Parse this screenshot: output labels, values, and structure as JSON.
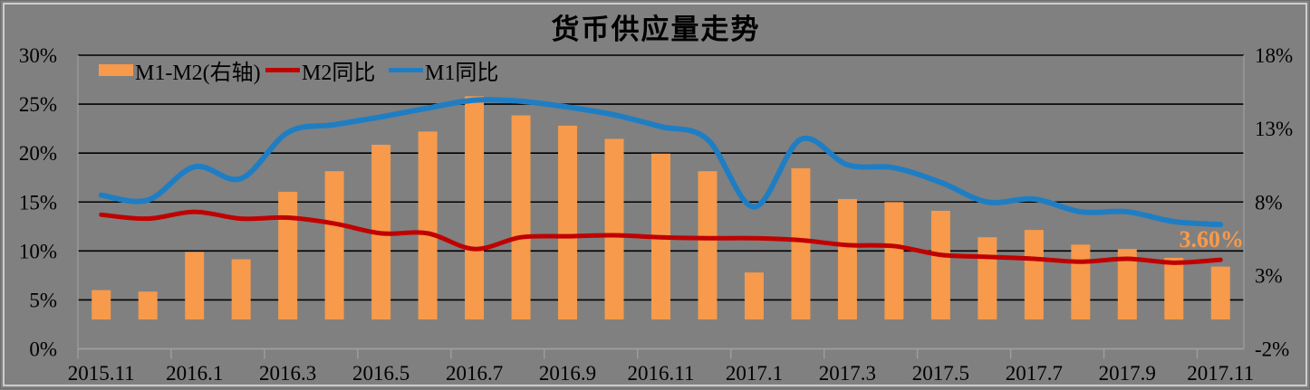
{
  "window": {
    "background_color": "#808080",
    "frame_color": "#cdcdcd"
  },
  "chart_data": {
    "type": "combo",
    "title": "货币供应量走势",
    "categories": [
      "2015.11",
      "2015.12",
      "2016.1",
      "2016.2",
      "2016.3",
      "2016.4",
      "2016.5",
      "2016.6",
      "2016.7",
      "2016.8",
      "2016.9",
      "2016.10",
      "2016.11",
      "2016.12",
      "2017.1",
      "2017.2",
      "2017.3",
      "2017.4",
      "2017.5",
      "2017.6",
      "2017.7",
      "2017.8",
      "2017.9",
      "2017.10",
      "2017.11"
    ],
    "x_tick_labels": [
      "2015.11",
      "2016.1",
      "2016.3",
      "2016.5",
      "2016.7",
      "2016.9",
      "2016.11",
      "2017.1",
      "2017.3",
      "2017.5",
      "2017.7",
      "2017.9",
      "2017.11"
    ],
    "label_every": 2,
    "series": [
      {
        "name": "M1-M2(右轴)",
        "type": "bar",
        "axis": "right",
        "color": "#F79A4B",
        "values": [
          2.0,
          1.9,
          4.6,
          4.1,
          8.7,
          10.1,
          11.9,
          12.8,
          15.2,
          13.9,
          13.2,
          12.3,
          11.3,
          10.1,
          3.2,
          10.3,
          8.2,
          8.0,
          7.4,
          5.6,
          6.1,
          5.1,
          4.8,
          4.2,
          3.6
        ]
      },
      {
        "name": "M2同比",
        "type": "line",
        "axis": "left",
        "color": "#C00000",
        "smooth": true,
        "values": [
          13.7,
          13.3,
          14.0,
          13.3,
          13.4,
          12.8,
          11.8,
          11.8,
          10.2,
          11.4,
          11.5,
          11.6,
          11.4,
          11.3,
          11.3,
          11.1,
          10.6,
          10.5,
          9.6,
          9.4,
          9.2,
          8.9,
          9.2,
          8.8,
          9.1
        ]
      },
      {
        "name": "M1同比",
        "type": "line",
        "axis": "left",
        "color": "#1F7EC3",
        "smooth": true,
        "values": [
          15.7,
          15.2,
          18.6,
          17.4,
          22.1,
          22.9,
          23.7,
          24.6,
          25.4,
          25.3,
          24.7,
          23.9,
          22.7,
          21.4,
          14.5,
          21.4,
          18.8,
          18.5,
          17.0,
          15.0,
          15.3,
          14.0,
          14.0,
          13.0,
          12.7
        ]
      }
    ],
    "left_axis": {
      "min": 0,
      "max": 30,
      "step": 5,
      "labels": [
        "0%",
        "5%",
        "10%",
        "15%",
        "20%",
        "25%",
        "30%"
      ]
    },
    "right_axis": {
      "min": -2,
      "max": 18,
      "step": 5,
      "labels": [
        "-2%",
        "3%",
        "8%",
        "13%",
        "18%"
      ]
    },
    "grid": {
      "horizontal": true,
      "color": "#000000"
    },
    "axis_line_color": "#9e9e9e",
    "legend_position": "top-left",
    "annotation": {
      "text": "3.60%",
      "color": "#F79A4B",
      "attached_to": "2017.11"
    }
  }
}
